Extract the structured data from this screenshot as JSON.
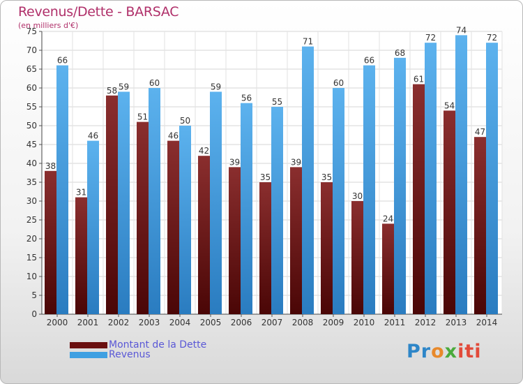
{
  "chart_data": {
    "type": "bar",
    "title": "Revenus/Dette - BARSAC",
    "subtitle": "(en milliers d'€)",
    "categories": [
      "2000",
      "2001",
      "2002",
      "2003",
      "2004",
      "2005",
      "2006",
      "2007",
      "2008",
      "2009",
      "2010",
      "2011",
      "2012",
      "2013",
      "2014"
    ],
    "series": [
      {
        "name": "Montant de la Dette",
        "values": [
          38,
          31,
          58,
          51,
          46,
          42,
          39,
          35,
          39,
          35,
          30,
          24,
          61,
          54,
          47
        ],
        "color": "#7a1a1a"
      },
      {
        "name": "Revenus",
        "values": [
          66,
          46,
          59,
          60,
          50,
          59,
          56,
          55,
          71,
          60,
          66,
          68,
          72,
          74,
          72
        ],
        "color": "#3fa0e2"
      }
    ],
    "ylim": [
      0,
      75
    ],
    "yticks": [
      0,
      5,
      10,
      15,
      20,
      25,
      30,
      35,
      40,
      45,
      50,
      55,
      60,
      65,
      70,
      75
    ],
    "grid": true,
    "legend_placement": "bottom-left"
  },
  "legend": {
    "items": [
      {
        "label": "Montant de la Dette",
        "color": "#6a1010"
      },
      {
        "label": "Revenus",
        "color": "#3fa0e2"
      }
    ]
  },
  "logo": {
    "p1": "Pr",
    "p2": "o",
    "p3": "x",
    "p4": "iti"
  }
}
